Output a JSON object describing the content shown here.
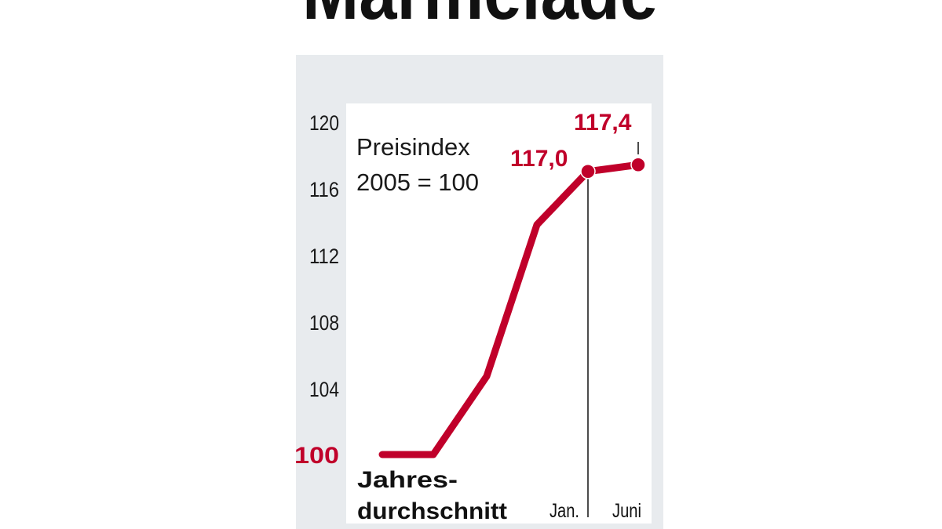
{
  "title": "Marmelade",
  "chart_data": {
    "type": "line",
    "title": "Marmelade",
    "annotation": [
      "Preisindex",
      "2005 = 100"
    ],
    "yticks": [
      "120",
      "116",
      "112",
      "108",
      "104",
      "100"
    ],
    "ylim": [
      100,
      120
    ],
    "xlabels": {
      "first_line1": "Jahres-",
      "first_line2": "durchschnitt",
      "jan": "Jan.",
      "juni": "Juni"
    },
    "values": [
      100,
      100,
      104.7,
      113.8,
      117.0,
      117.4
    ],
    "data_labels": {
      "jan": "117,0",
      "juni": "117,4"
    },
    "grid": false,
    "colors": {
      "line": "#c0002a",
      "panel": "#e8ebee",
      "plot": "#ffffff",
      "text": "#1a1a1a"
    }
  }
}
